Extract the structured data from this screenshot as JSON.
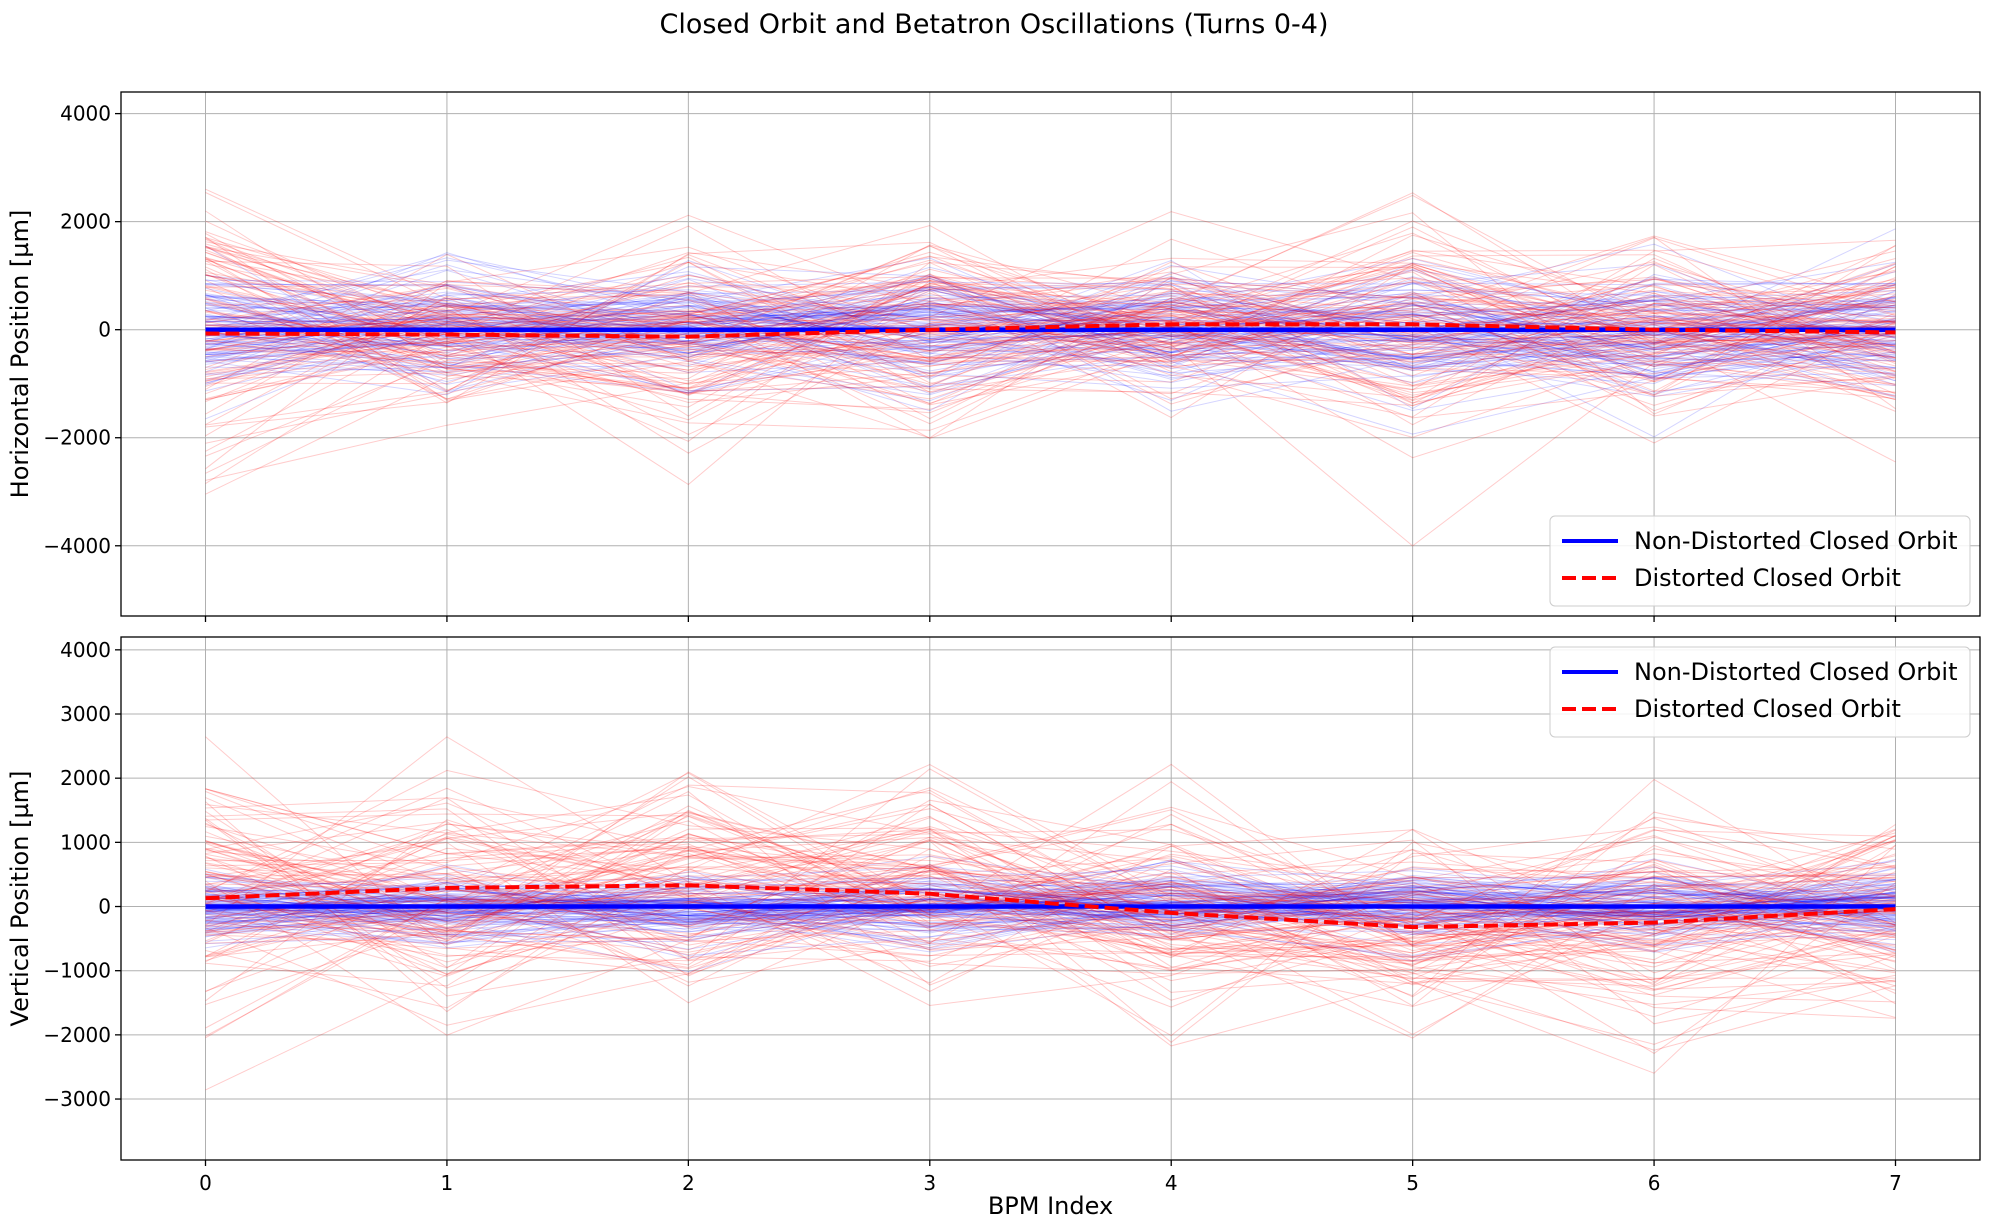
{
  "figure": {
    "title": "Closed Orbit and Betatron Oscillations (Turns 0-4)"
  },
  "colors": {
    "non_distorted": "#0000ff",
    "distorted": "#ff0000",
    "grid": "#b0b0b0",
    "axes": "#000000"
  },
  "chart_data": [
    {
      "type": "line",
      "panel": "top",
      "xlabel": "",
      "ylabel": "Horizontal Position [µm]",
      "x": [
        0,
        1,
        2,
        3,
        4,
        5,
        6,
        7
      ],
      "xlim": [
        -0.35,
        7.35
      ],
      "ylim": [
        -5300,
        4400
      ],
      "yticks": [
        -4000,
        -2000,
        0,
        2000,
        4000
      ],
      "grid": true,
      "legend_position": "lower-right",
      "series": [
        {
          "name": "Non-Distorted Closed Orbit",
          "style": "solid",
          "color": "#0000ff",
          "values": [
            0,
            0,
            0,
            0,
            0,
            0,
            0,
            0
          ]
        },
        {
          "name": "Distorted Closed Orbit",
          "style": "dashed",
          "color": "#ff0000",
          "values": [
            -70,
            -90,
            -130,
            0,
            100,
            100,
            0,
            -50
          ]
        }
      ],
      "envelopes": [
        {
          "color": "#0000ff",
          "spread": [
            950,
            950,
            950,
            950,
            950,
            950,
            950,
            950
          ]
        },
        {
          "color": "#ff0000",
          "spread": [
            2000,
            1100,
            1600,
            1500,
            1100,
            1700,
            1200,
            1400
          ]
        }
      ]
    },
    {
      "type": "line",
      "panel": "bottom",
      "xlabel": "BPM Index",
      "ylabel": "Vertical Position [µm]",
      "x": [
        0,
        1,
        2,
        3,
        4,
        5,
        6,
        7
      ],
      "xlim": [
        -0.35,
        7.35
      ],
      "ylim": [
        -3950,
        4200
      ],
      "yticks": [
        -3000,
        -2000,
        -1000,
        0,
        1000,
        2000,
        3000,
        4000
      ],
      "grid": true,
      "legend_position": "upper-right",
      "series": [
        {
          "name": "Non-Distorted Closed Orbit",
          "style": "solid",
          "color": "#0000ff",
          "values": [
            0,
            0,
            0,
            0,
            0,
            0,
            0,
            0
          ]
        },
        {
          "name": "Distorted Closed Orbit",
          "style": "dashed",
          "color": "#ff0000",
          "values": [
            130,
            290,
            330,
            200,
            -100,
            -320,
            -250,
            -40
          ]
        }
      ],
      "envelopes": [
        {
          "color": "#0000ff",
          "spread": [
            450,
            450,
            450,
            450,
            450,
            450,
            450,
            450
          ]
        },
        {
          "color": "#ff0000",
          "spread": [
            1500,
            1500,
            1300,
            1300,
            1300,
            1200,
            1300,
            1300
          ]
        }
      ]
    }
  ]
}
